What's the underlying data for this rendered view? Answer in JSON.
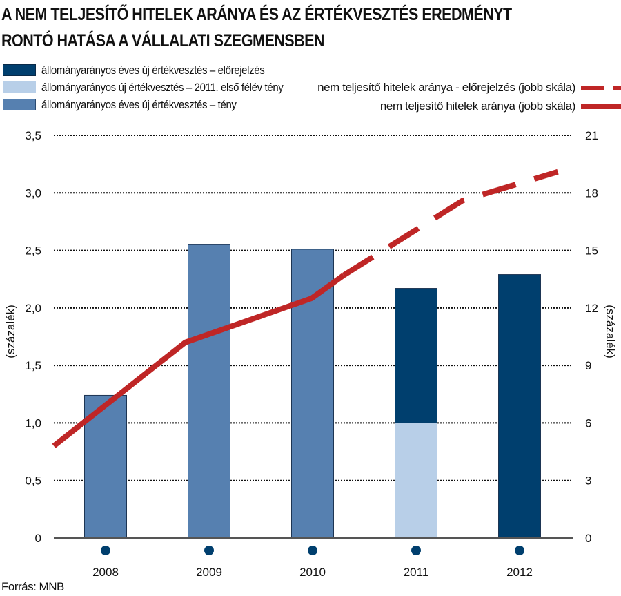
{
  "title_lines": [
    "A NEM TELJESÍTŐ HITELEK ARÁNYA ÉS AZ ÉRTÉKVESZTÉS EREDMÉNYT",
    "RONTÓ HATÁSA A VÁLLALATI SZEGMENSBEN"
  ],
  "source": "Forrás: MNB",
  "colors": {
    "forecast_bar": "#003F6E",
    "h1_2011_bar": "#B8CFE8",
    "actual_bar": "#5680B0",
    "npl_line": "#BF2626",
    "marker": "#003F6E"
  },
  "legend": {
    "left": [
      {
        "label": "állományarányos éves új értékvesztés – előrejelzés",
        "color": "#003F6E"
      },
      {
        "label": "állományarányos új értékvesztés – 2011. első félév tény",
        "color": "#B8CFE8"
      },
      {
        "label": "állományarányos éves új értékvesztés – tény",
        "color": "#5680B0"
      }
    ],
    "right": [
      {
        "label": "nem teljesítő hitelek aránya - előrejelzés (jobb skála)",
        "style": "dashed"
      },
      {
        "label": "nem teljesítő hitelek aránya (jobb skála)",
        "style": "solid"
      }
    ]
  },
  "chart_data": {
    "type": "bar",
    "title": "A NEM TELJESÍTŐ HITELEK ARÁNYA ÉS AZ ÉRTÉKVESZTÉS EREDMÉNYT RONTÓ HATÁSA A VÁLLALATI SZEGMENSBEN",
    "categories": [
      "2008",
      "2009",
      "2010",
      "2011",
      "2012"
    ],
    "ylabel_left": "(százalék)",
    "ylabel_right": "(százalék)",
    "ylim_left": [
      0,
      3.5
    ],
    "ylim_right": [
      0,
      21
    ],
    "yticks_left": [
      "0",
      "0,5",
      "1,0",
      "1,5",
      "2,0",
      "2,5",
      "3,0",
      "3,5"
    ],
    "yticks_left_values": [
      0,
      0.5,
      1.0,
      1.5,
      2.0,
      2.5,
      3.0,
      3.5
    ],
    "yticks_right": [
      "0",
      "3",
      "6",
      "9",
      "12",
      "15",
      "18",
      "21"
    ],
    "yticks_right_values": [
      0,
      3,
      6,
      9,
      12,
      15,
      18,
      21
    ],
    "grid": "horizontal-dotted",
    "bar_series": [
      {
        "name": "állományarányos éves új értékvesztés – tény",
        "color": "#5680B0",
        "values": [
          1.24,
          2.55,
          2.51,
          null,
          null
        ]
      },
      {
        "name": "állományarányos új értékvesztés – 2011. első félév tény",
        "color": "#B8CFE8",
        "values": [
          null,
          null,
          null,
          1.0,
          null
        ]
      },
      {
        "name": "állományarányos éves új értékvesztés – előrejelzés",
        "color": "#003F6E",
        "values": [
          null,
          null,
          null,
          1.17,
          2.29
        ],
        "stacked_on": "állományarányos új értékvesztés – 2011. első félév tény"
      }
    ],
    "line_series": [
      {
        "name": "nem teljesítő hitelek aránya (jobb skála)",
        "axis": "right",
        "style": "solid",
        "color": "#BF2626",
        "x": [
          2007.5,
          2008.77,
          2009.99,
          2010.3
        ],
        "values": [
          4.8,
          10.2,
          12.5,
          13.7
        ]
      },
      {
        "name": "nem teljesítő hitelek aránya - előrejelzés (jobb skála)",
        "axis": "right",
        "style": "dashed",
        "color": "#BF2626",
        "x": [
          2010.3,
          2011.45,
          2012.37
        ],
        "values": [
          13.7,
          17.6,
          19.1
        ]
      }
    ],
    "legend_position": "top"
  }
}
